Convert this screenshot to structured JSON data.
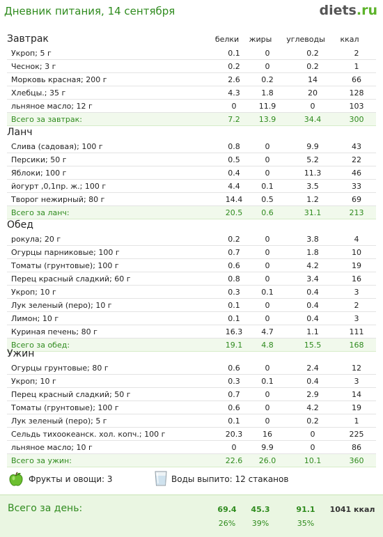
{
  "header": {
    "title": "Дневник питания, 14 сентября",
    "logo_main": "diets",
    "logo_tld": ".ru"
  },
  "columns": {
    "protein": "белки",
    "fat": "жиры",
    "carbs": "углеводы",
    "kcal": "ккал"
  },
  "sections": [
    {
      "title": "Завтрак",
      "rows": [
        {
          "name": "Укроп; 5 г",
          "p": "0.1",
          "f": "0",
          "c": "0.2",
          "k": "2"
        },
        {
          "name": "Чеснок; 3 г",
          "p": "0.2",
          "f": "0",
          "c": "0.2",
          "k": "1"
        },
        {
          "name": "Морковь красная; 200 г",
          "p": "2.6",
          "f": "0.2",
          "c": "14",
          "k": "66"
        },
        {
          "name": "Хлебцы.; 35 г",
          "p": "4.3",
          "f": "1.8",
          "c": "20",
          "k": "128"
        },
        {
          "name": "льняное масло; 12 г",
          "p": "0",
          "f": "11.9",
          "c": "0",
          "k": "103"
        }
      ],
      "total": {
        "label": "Всего за завтрак:",
        "p": "7.2",
        "f": "13.9",
        "c": "34.4",
        "k": "300"
      }
    },
    {
      "title": "Ланч",
      "rows": [
        {
          "name": "Слива (садовая); 100 г",
          "p": "0.8",
          "f": "0",
          "c": "9.9",
          "k": "43"
        },
        {
          "name": "Персики; 50 г",
          "p": "0.5",
          "f": "0",
          "c": "5.2",
          "k": "22"
        },
        {
          "name": "Яблоки; 100 г",
          "p": "0.4",
          "f": "0",
          "c": "11.3",
          "k": "46"
        },
        {
          "name": "йогурт ,0,1пр. ж.; 100 г",
          "p": "4.4",
          "f": "0.1",
          "c": "3.5",
          "k": "33"
        },
        {
          "name": "Творог нежирный; 80 г",
          "p": "14.4",
          "f": "0.5",
          "c": "1.2",
          "k": "69"
        }
      ],
      "total": {
        "label": "Всего за ланч:",
        "p": "20.5",
        "f": "0.6",
        "c": "31.1",
        "k": "213"
      }
    },
    {
      "title": "Обед",
      "rows": [
        {
          "name": "рокула; 20 г",
          "p": "0.2",
          "f": "0",
          "c": "3.8",
          "k": "4"
        },
        {
          "name": "Огурцы парниковые; 100 г",
          "p": "0.7",
          "f": "0",
          "c": "1.8",
          "k": "10"
        },
        {
          "name": "Томаты (грунтовые); 100 г",
          "p": "0.6",
          "f": "0",
          "c": "4.2",
          "k": "19"
        },
        {
          "name": "Перец красный сладкий; 60 г",
          "p": "0.8",
          "f": "0",
          "c": "3.4",
          "k": "16"
        },
        {
          "name": "Укроп; 10 г",
          "p": "0.3",
          "f": "0.1",
          "c": "0.4",
          "k": "3"
        },
        {
          "name": "Лук зеленый (перо); 10 г",
          "p": "0.1",
          "f": "0",
          "c": "0.4",
          "k": "2"
        },
        {
          "name": "Лимон; 10 г",
          "p": "0.1",
          "f": "0",
          "c": "0.4",
          "k": "3"
        },
        {
          "name": "Куриная печень; 80 г",
          "p": "16.3",
          "f": "4.7",
          "c": "1.1",
          "k": "111"
        }
      ],
      "total": {
        "label": "Всего за обед:",
        "p": "19.1",
        "f": "4.8",
        "c": "15.5",
        "k": "168"
      }
    },
    {
      "title": "Ужин",
      "rows": [
        {
          "name": "Огурцы грунтовые; 80 г",
          "p": "0.6",
          "f": "0",
          "c": "2.4",
          "k": "12"
        },
        {
          "name": "Укроп; 10 г",
          "p": "0.3",
          "f": "0.1",
          "c": "0.4",
          "k": "3"
        },
        {
          "name": "Перец красный сладкий; 50 г",
          "p": "0.7",
          "f": "0",
          "c": "2.9",
          "k": "14"
        },
        {
          "name": "Томаты (грунтовые); 100 г",
          "p": "0.6",
          "f": "0",
          "c": "4.2",
          "k": "19"
        },
        {
          "name": "Лук зеленый (перо); 5 г",
          "p": "0.1",
          "f": "0",
          "c": "0.2",
          "k": "1"
        },
        {
          "name": "Сельдь тихоокеанск. хол. копч.; 100 г",
          "p": "20.3",
          "f": "16",
          "c": "0",
          "k": "225"
        },
        {
          "name": "льняное масло; 10 г",
          "p": "0",
          "f": "9.9",
          "c": "0",
          "k": "86"
        }
      ],
      "total": {
        "label": "Всего за ужин:",
        "p": "22.6",
        "f": "26.0",
        "c": "10.1",
        "k": "360"
      }
    }
  ],
  "extras": {
    "fruit_icon": "apple-icon",
    "fruit_label": "Фрукты и овощи: 3",
    "water_icon": "glass-icon",
    "water_label": "Воды выпито: 12 стаканов"
  },
  "day_total": {
    "label": "Всего за день:",
    "p": "69.4",
    "f": "45.3",
    "c": "91.1",
    "kcal": "1041 ккал",
    "p_pct": "26%",
    "f_pct": "39%",
    "c_pct": "35%"
  },
  "colors": {
    "accent_green": "#2f8b1e",
    "total_bg": "#f1f9ec",
    "day_bg": "#eaf6e2",
    "logo_tld": "#5cb32a"
  }
}
